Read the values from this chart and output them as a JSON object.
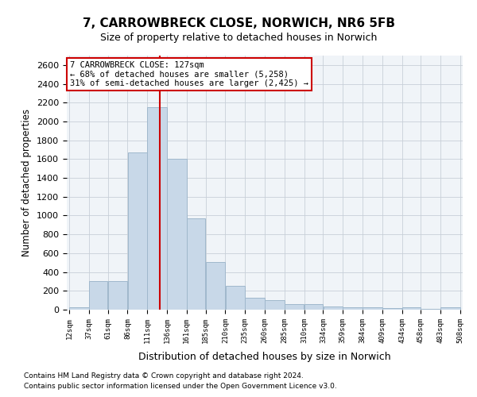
{
  "title_line1": "7, CARROWBRECK CLOSE, NORWICH, NR6 5FB",
  "title_line2": "Size of property relative to detached houses in Norwich",
  "xlabel": "Distribution of detached houses by size in Norwich",
  "ylabel": "Number of detached properties",
  "footnote1": "Contains HM Land Registry data © Crown copyright and database right 2024.",
  "footnote2": "Contains public sector information licensed under the Open Government Licence v3.0.",
  "annotation_line1": "7 CARROWBRECK CLOSE: 127sqm",
  "annotation_line2": "← 68% of detached houses are smaller (5,258)",
  "annotation_line3": "31% of semi-detached houses are larger (2,425) →",
  "property_size": 127,
  "bar_color": "#c8d8e8",
  "bar_edge_color": "#a0b8cc",
  "vline_color": "#cc0000",
  "annotation_box_color": "#cc0000",
  "grid_color": "#c8d0d8",
  "background_color": "#f0f4f8",
  "bin_edges": [
    12,
    37,
    61,
    86,
    111,
    136,
    161,
    185,
    210,
    235,
    260,
    285,
    310,
    334,
    359,
    384,
    409,
    434,
    458,
    483,
    508
  ],
  "bin_labels": [
    "12sqm",
    "37sqm",
    "61sqm",
    "86sqm",
    "111sqm",
    "136sqm",
    "161sqm",
    "185sqm",
    "210sqm",
    "235sqm",
    "260sqm",
    "285sqm",
    "310sqm",
    "334sqm",
    "359sqm",
    "384sqm",
    "409sqm",
    "434sqm",
    "458sqm",
    "483sqm",
    "508sqm"
  ],
  "bar_heights": [
    25,
    300,
    300,
    1670,
    2150,
    1600,
    970,
    510,
    250,
    125,
    100,
    55,
    55,
    30,
    25,
    25,
    20,
    25,
    10,
    25
  ],
  "ylim": [
    0,
    2700
  ],
  "yticks": [
    0,
    200,
    400,
    600,
    800,
    1000,
    1200,
    1400,
    1600,
    1800,
    2000,
    2200,
    2400,
    2600
  ]
}
